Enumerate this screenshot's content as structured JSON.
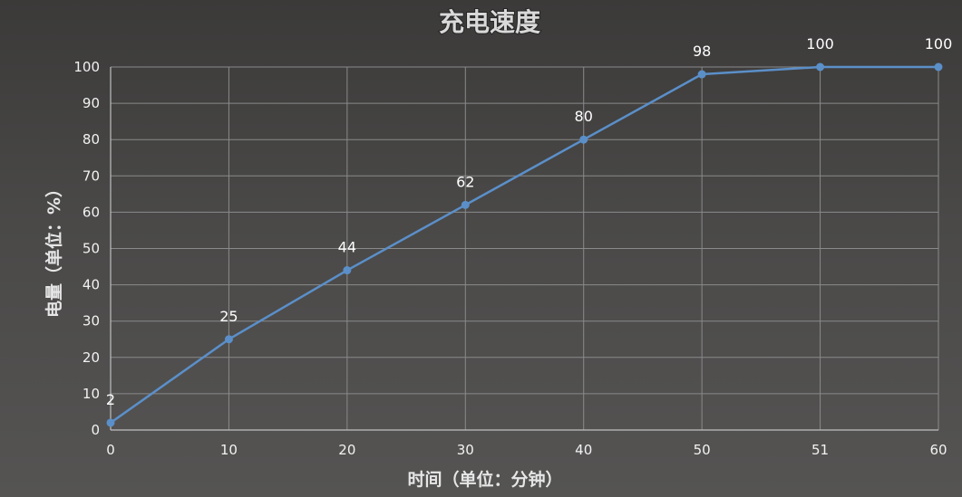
{
  "chart_data": {
    "type": "line",
    "title": "充电速度",
    "xlabel": "时间（单位：分钟）",
    "ylabel": "电量（单位：%）",
    "categories": [
      "0",
      "10",
      "20",
      "30",
      "40",
      "50",
      "51",
      "60"
    ],
    "series": [
      {
        "values": [
          2,
          25,
          44,
          62,
          80,
          98,
          100,
          100
        ],
        "color": "#5b8fc9"
      }
    ],
    "data_labels": [
      "2",
      "25",
      "44",
      "62",
      "80",
      "98",
      "100",
      "100"
    ],
    "y_ticks": [
      "0",
      "10",
      "20",
      "30",
      "40",
      "50",
      "60",
      "70",
      "80",
      "90",
      "100"
    ],
    "ylim": [
      0,
      100
    ],
    "grid": true,
    "legend": "none"
  }
}
